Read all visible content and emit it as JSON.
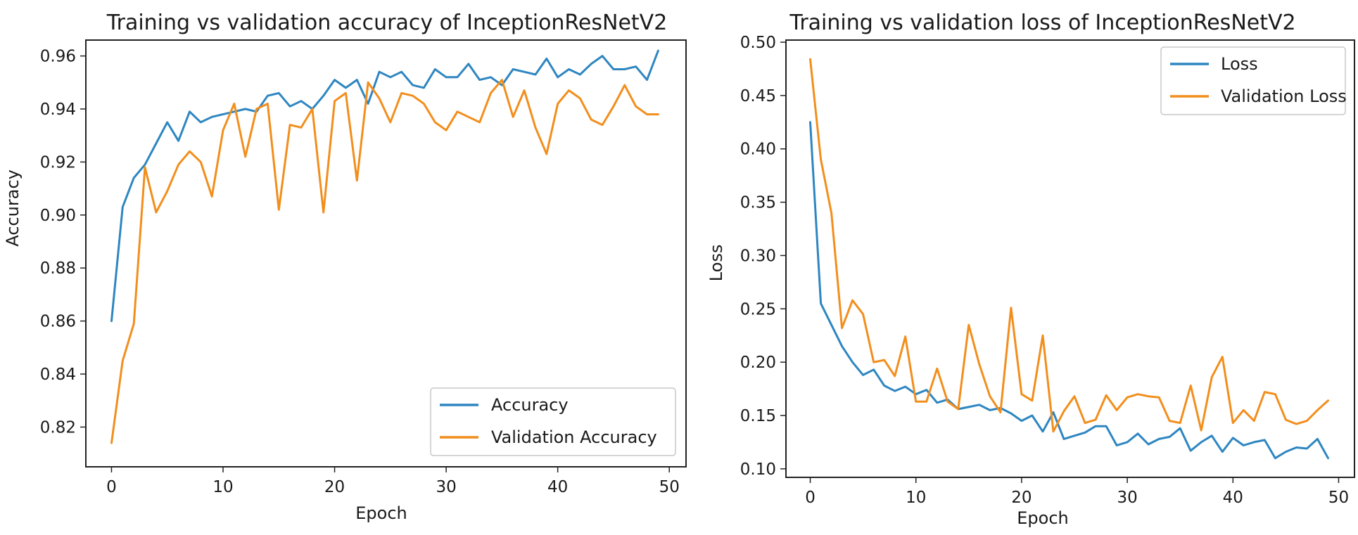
{
  "colors": {
    "series1": "#2e86c1",
    "series2": "#f28e1c",
    "axis": "#222222",
    "legend_border": "#c8c8c8"
  },
  "chart_data": [
    {
      "type": "line",
      "title": "Training vs validation accuracy of InceptionResNetV2",
      "xlabel": "Epoch",
      "ylabel": "Accuracy",
      "xlim": [
        -2.3,
        51.5
      ],
      "ylim": [
        0.805,
        0.966
      ],
      "xticks": [
        0,
        10,
        20,
        30,
        40,
        50
      ],
      "xtick_labels": [
        "0",
        "10",
        "20",
        "30",
        "40",
        "50"
      ],
      "yticks": [
        0.82,
        0.84,
        0.86,
        0.88,
        0.9,
        0.92,
        0.94,
        0.96
      ],
      "ytick_labels": [
        "0.82",
        "0.84",
        "0.86",
        "0.88",
        "0.90",
        "0.92",
        "0.94",
        "0.96"
      ],
      "legend_position": "lower-right",
      "grid": false,
      "x": [
        0,
        1,
        2,
        3,
        4,
        5,
        6,
        7,
        8,
        9,
        10,
        11,
        12,
        13,
        14,
        15,
        16,
        17,
        18,
        19,
        20,
        21,
        22,
        23,
        24,
        25,
        26,
        27,
        28,
        29,
        30,
        31,
        32,
        33,
        34,
        35,
        36,
        37,
        38,
        39,
        40,
        41,
        42,
        43,
        44,
        45,
        46,
        47,
        48,
        49
      ],
      "series": [
        {
          "name": "Accuracy",
          "color_key": "series1",
          "values": [
            0.86,
            0.903,
            0.914,
            0.919,
            0.927,
            0.935,
            0.928,
            0.939,
            0.935,
            0.937,
            0.938,
            0.939,
            0.94,
            0.939,
            0.945,
            0.946,
            0.941,
            0.943,
            0.94,
            0.945,
            0.951,
            0.948,
            0.951,
            0.942,
            0.954,
            0.952,
            0.954,
            0.949,
            0.948,
            0.955,
            0.952,
            0.952,
            0.957,
            0.951,
            0.952,
            0.949,
            0.955,
            0.954,
            0.953,
            0.959,
            0.952,
            0.955,
            0.953,
            0.957,
            0.96,
            0.955,
            0.955,
            0.956,
            0.951,
            0.962
          ]
        },
        {
          "name": "Validation Accuracy",
          "color_key": "series2",
          "values": [
            0.814,
            0.845,
            0.859,
            0.918,
            0.901,
            0.909,
            0.919,
            0.924,
            0.92,
            0.907,
            0.932,
            0.942,
            0.922,
            0.94,
            0.942,
            0.902,
            0.934,
            0.933,
            0.94,
            0.901,
            0.943,
            0.946,
            0.913,
            0.95,
            0.944,
            0.935,
            0.946,
            0.945,
            0.942,
            0.935,
            0.932,
            0.939,
            0.937,
            0.935,
            0.946,
            0.951,
            0.937,
            0.947,
            0.933,
            0.923,
            0.942,
            0.947,
            0.944,
            0.936,
            0.934,
            0.941,
            0.949,
            0.941,
            0.938,
            0.938
          ]
        }
      ]
    },
    {
      "type": "line",
      "title": "Training vs validation loss of InceptionResNetV2",
      "xlabel": "Epoch",
      "ylabel": "Loss",
      "xlim": [
        -2.3,
        51.5
      ],
      "ylim": [
        0.092,
        0.502
      ],
      "xticks": [
        0,
        10,
        20,
        30,
        40,
        50
      ],
      "xtick_labels": [
        "0",
        "10",
        "20",
        "30",
        "40",
        "50"
      ],
      "yticks": [
        0.1,
        0.15,
        0.2,
        0.25,
        0.3,
        0.35,
        0.4,
        0.45,
        0.5
      ],
      "ytick_labels": [
        "0.10",
        "0.15",
        "0.20",
        "0.25",
        "0.30",
        "0.35",
        "0.40",
        "0.45",
        "0.50"
      ],
      "legend_position": "upper-right",
      "grid": false,
      "x": [
        0,
        1,
        2,
        3,
        4,
        5,
        6,
        7,
        8,
        9,
        10,
        11,
        12,
        13,
        14,
        15,
        16,
        17,
        18,
        19,
        20,
        21,
        22,
        23,
        24,
        25,
        26,
        27,
        28,
        29,
        30,
        31,
        32,
        33,
        34,
        35,
        36,
        37,
        38,
        39,
        40,
        41,
        42,
        43,
        44,
        45,
        46,
        47,
        48,
        49
      ],
      "series": [
        {
          "name": "Loss",
          "color_key": "series1",
          "values": [
            0.425,
            0.255,
            0.235,
            0.215,
            0.2,
            0.188,
            0.193,
            0.178,
            0.173,
            0.177,
            0.17,
            0.174,
            0.162,
            0.165,
            0.156,
            0.158,
            0.16,
            0.155,
            0.157,
            0.152,
            0.145,
            0.15,
            0.135,
            0.153,
            0.128,
            0.131,
            0.134,
            0.14,
            0.14,
            0.122,
            0.125,
            0.133,
            0.123,
            0.128,
            0.13,
            0.138,
            0.117,
            0.125,
            0.131,
            0.116,
            0.129,
            0.122,
            0.125,
            0.127,
            0.11,
            0.116,
            0.12,
            0.119,
            0.128,
            0.11
          ]
        },
        {
          "name": "Validation Loss",
          "color_key": "series2",
          "values": [
            0.484,
            0.39,
            0.34,
            0.232,
            0.258,
            0.245,
            0.2,
            0.202,
            0.187,
            0.224,
            0.163,
            0.163,
            0.194,
            0.163,
            0.156,
            0.235,
            0.198,
            0.168,
            0.153,
            0.251,
            0.17,
            0.164,
            0.225,
            0.135,
            0.154,
            0.168,
            0.143,
            0.146,
            0.169,
            0.155,
            0.167,
            0.17,
            0.168,
            0.167,
            0.145,
            0.143,
            0.178,
            0.136,
            0.186,
            0.205,
            0.143,
            0.155,
            0.145,
            0.172,
            0.17,
            0.146,
            0.142,
            0.145,
            0.155,
            0.164
          ]
        }
      ]
    }
  ]
}
